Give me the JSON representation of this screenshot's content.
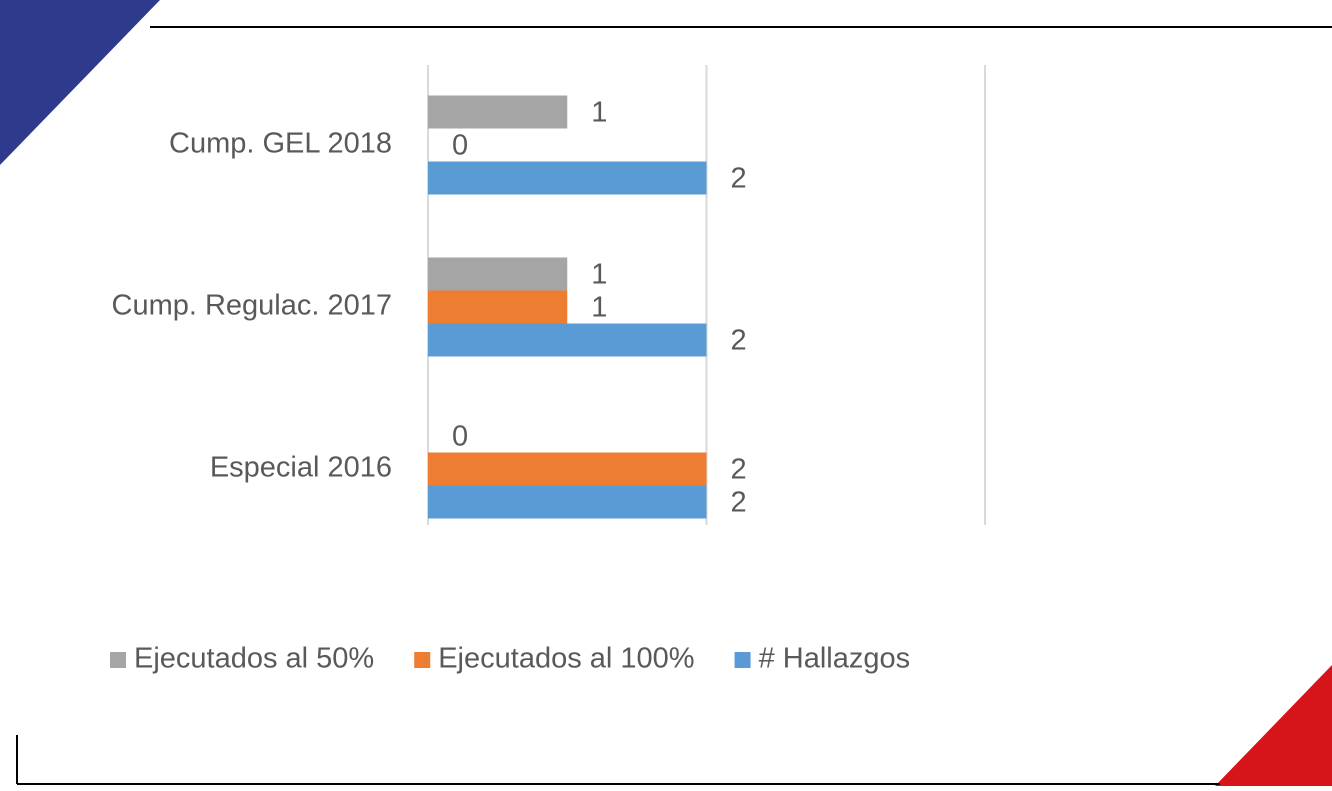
{
  "chart_data": {
    "type": "barh",
    "categories": [
      "Cump. GEL 2018",
      "Cump. Regulac.  2017",
      "Especial 2016"
    ],
    "series": [
      {
        "name": "Ejecutados al 50%",
        "color": "#a5a5a5",
        "values": [
          1,
          1,
          0
        ]
      },
      {
        "name": "Ejecutados al 100%",
        "color": "#ed7d31",
        "values": [
          0,
          1,
          2
        ]
      },
      {
        "name": "# Hallazgos",
        "color": "#5b9bd5",
        "values": [
          2,
          2,
          2
        ]
      }
    ],
    "xlim": [
      0,
      4
    ],
    "xticks": [
      0,
      2,
      4
    ],
    "grid": true,
    "legend": "bottom"
  }
}
